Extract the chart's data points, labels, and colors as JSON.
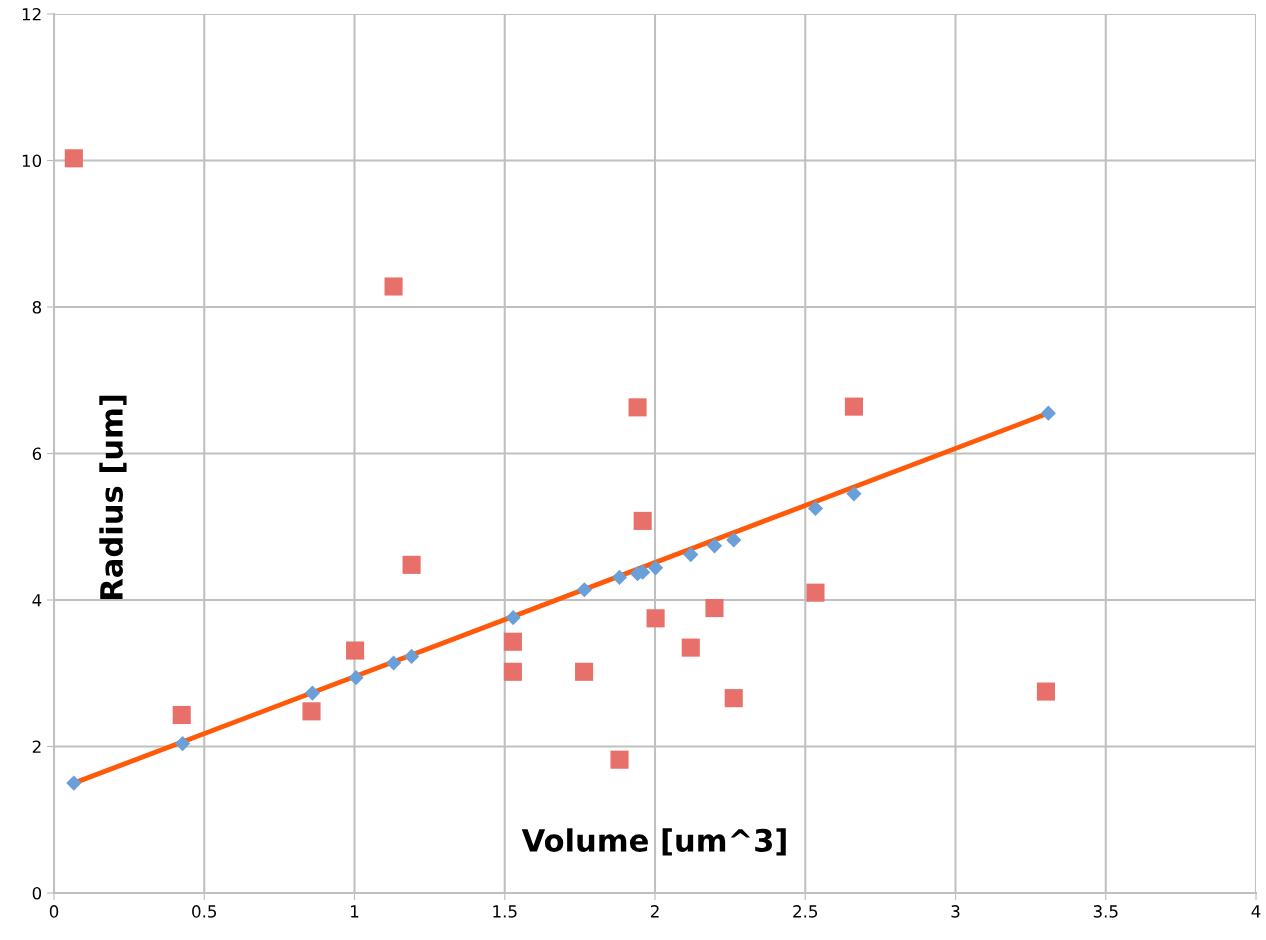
{
  "chart_data": {
    "type": "scatter",
    "xlabel": "Volume [um^3]",
    "ylabel": "Radius [um]",
    "xlim": [
      0,
      4
    ],
    "xticks": [
      0,
      0.5,
      1,
      1.5,
      2,
      2.5,
      3,
      3.5,
      4
    ],
    "ylim": [
      0,
      12
    ],
    "yticks": [
      0,
      2,
      4,
      6,
      8,
      10,
      12
    ],
    "grid": true,
    "legend": false,
    "series": [
      {
        "marker": "square",
        "color": "#e8706b",
        "x": [
          0.066,
          1.13,
          1.942,
          2.662,
          0.425,
          0.857,
          1.002,
          1.19,
          1.527,
          1.527,
          1.764,
          1.882,
          1.959,
          2.002,
          2.198,
          2.119,
          2.262,
          2.534,
          3.301
        ],
        "values": [
          10.03,
          8.28,
          6.63,
          6.64,
          2.43,
          2.48,
          3.31,
          4.48,
          3.43,
          3.02,
          3.02,
          1.82,
          5.08,
          3.75,
          3.89,
          3.35,
          2.66,
          4.1,
          2.75
        ]
      },
      {
        "type": "line",
        "marker": "none",
        "color": "#ff5a0a",
        "x": [
          0.066,
          3.309
        ],
        "values": [
          1.5,
          6.55
        ]
      },
      {
        "marker": "diamond",
        "color": "#6a9fd8",
        "x": [
          0.066,
          0.428,
          0.86,
          1.005,
          1.13,
          1.19,
          1.528,
          1.765,
          1.882,
          1.942,
          1.959,
          2.002,
          2.119,
          2.198,
          2.262,
          2.534,
          2.662,
          3.309
        ],
        "values": [
          1.5,
          2.04,
          2.73,
          2.94,
          3.14,
          3.23,
          3.76,
          4.14,
          4.31,
          4.36,
          4.38,
          4.44,
          4.62,
          4.74,
          4.82,
          5.25,
          5.45,
          6.55
        ]
      }
    ]
  }
}
